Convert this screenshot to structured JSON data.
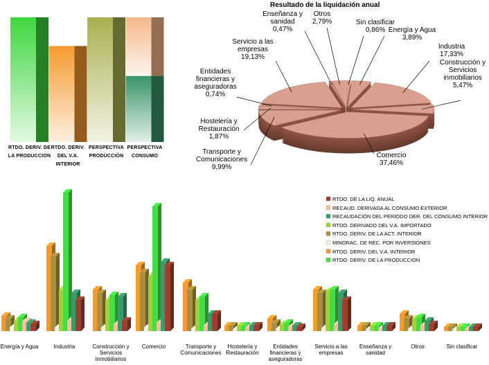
{
  "chart_data": [
    {
      "type": "bar",
      "stacked": true,
      "categories": [
        "RTDO. DERIV. DE LA PRODUCCION",
        "RTDO. DERIV. DEL V.A. INTERIOR",
        "PERSPECTIVA PRODUCCIÓN",
        "PERSPECTIVA CONSUMO"
      ],
      "series": [
        {
          "values": [
            100,
            77,
            100,
            53
          ],
          "colors": [
            "#3fd63f",
            "#f59a30",
            "#a8b050",
            "#3a9468"
          ]
        },
        {
          "values": [
            0,
            0,
            0,
            47
          ],
          "colors": [
            "#f4b88a",
            "#f4b88a",
            "#f4b88a",
            "#f4b88a"
          ]
        }
      ],
      "ylim": [
        0,
        100
      ]
    },
    {
      "type": "pie",
      "title": "Resultado de la liquidación anual",
      "categories": [
        "Sin clasificar",
        "Energía y Agua",
        "Industria",
        "Construcción y Servicios inmobiliarios",
        "Comercio",
        "Transporte y Comunicaciones",
        "Hostelería y Restauración",
        "Entidades financieras y aseguradoras",
        "Servicio a las empresas",
        "Enseñanza y sanidad",
        "Otros"
      ],
      "values": [
        0.86,
        3.89,
        17.33,
        5.47,
        37.46,
        9.99,
        1.87,
        0.74,
        19.13,
        0.47,
        2.79
      ],
      "value_labels": [
        "0,86%",
        "3,89%",
        "17,33%",
        "5,47%",
        "37,46%",
        "9,99%",
        "1,87%",
        "0,74%",
        "19,13%",
        "0,47%",
        "2,79%"
      ],
      "color": "#d9a090"
    },
    {
      "type": "bar",
      "legend": "upper right",
      "categories": [
        "Energía y Agua",
        "Industria",
        "Construcción y Servicios inmobiliarios",
        "Comercio",
        "Transporte y Comunicaciones",
        "Hostelería y Restauración",
        "Entidades financieras y aseguradoras",
        "Servicio a las empresas",
        "Enseñanza y sanidad",
        "Otros",
        "Sin clasificar"
      ],
      "ylim": [
        0,
        200
      ],
      "series": [
        {
          "name": "RTDO. DE LA LIQ. ANUAL",
          "color": "#9a4030",
          "values": [
            10,
            45,
            15,
            95,
            25,
            8,
            6,
            45,
            8,
            10,
            6
          ]
        },
        {
          "name": "RECAUD. DERIVADA AL CONSUMO EXTERIOR",
          "color": "#f4c09a",
          "values": [
            14,
            15,
            10,
            12,
            8,
            5,
            6,
            10,
            4,
            8,
            3
          ]
        },
        {
          "name": "RECAUDACIÓN DEL PERIODO DER. DEL CONSUMO INTERIOR",
          "color": "#3a9a6a",
          "values": [
            12,
            55,
            50,
            100,
            25,
            8,
            8,
            55,
            8,
            15,
            6
          ]
        },
        {
          "name": "RTDO. DERIVADO DEL V.A. IMPORTADO",
          "color": "#a0d040",
          "values": [
            15,
            60,
            45,
            80,
            45,
            8,
            10,
            58,
            8,
            18,
            6
          ]
        },
        {
          "name": "RTDO. DERIV. DE LA ACT. INTERIOR",
          "color": "#a89040",
          "values": [
            18,
            108,
            55,
            85,
            60,
            8,
            12,
            55,
            8,
            18,
            6
          ]
        },
        {
          "name": "MINORAC. DE REC. POR INVERSIONES",
          "color": "#f2f0e0",
          "values": [
            5,
            5,
            5,
            5,
            3,
            2,
            3,
            4,
            2,
            3,
            2
          ]
        },
        {
          "name": "RTDO. DERIV. DEL V.A. INTERIOR",
          "color": "#f59a30",
          "values": [
            22,
            123,
            60,
            95,
            70,
            8,
            18,
            60,
            8,
            25,
            6
          ]
        },
        {
          "name": "RTDO. DERIV. DE LA PRODUCCION",
          "color": "#45dd45",
          "values": [
            20,
            200,
            52,
            180,
            50,
            8,
            12,
            60,
            8,
            20,
            6
          ]
        }
      ]
    }
  ]
}
